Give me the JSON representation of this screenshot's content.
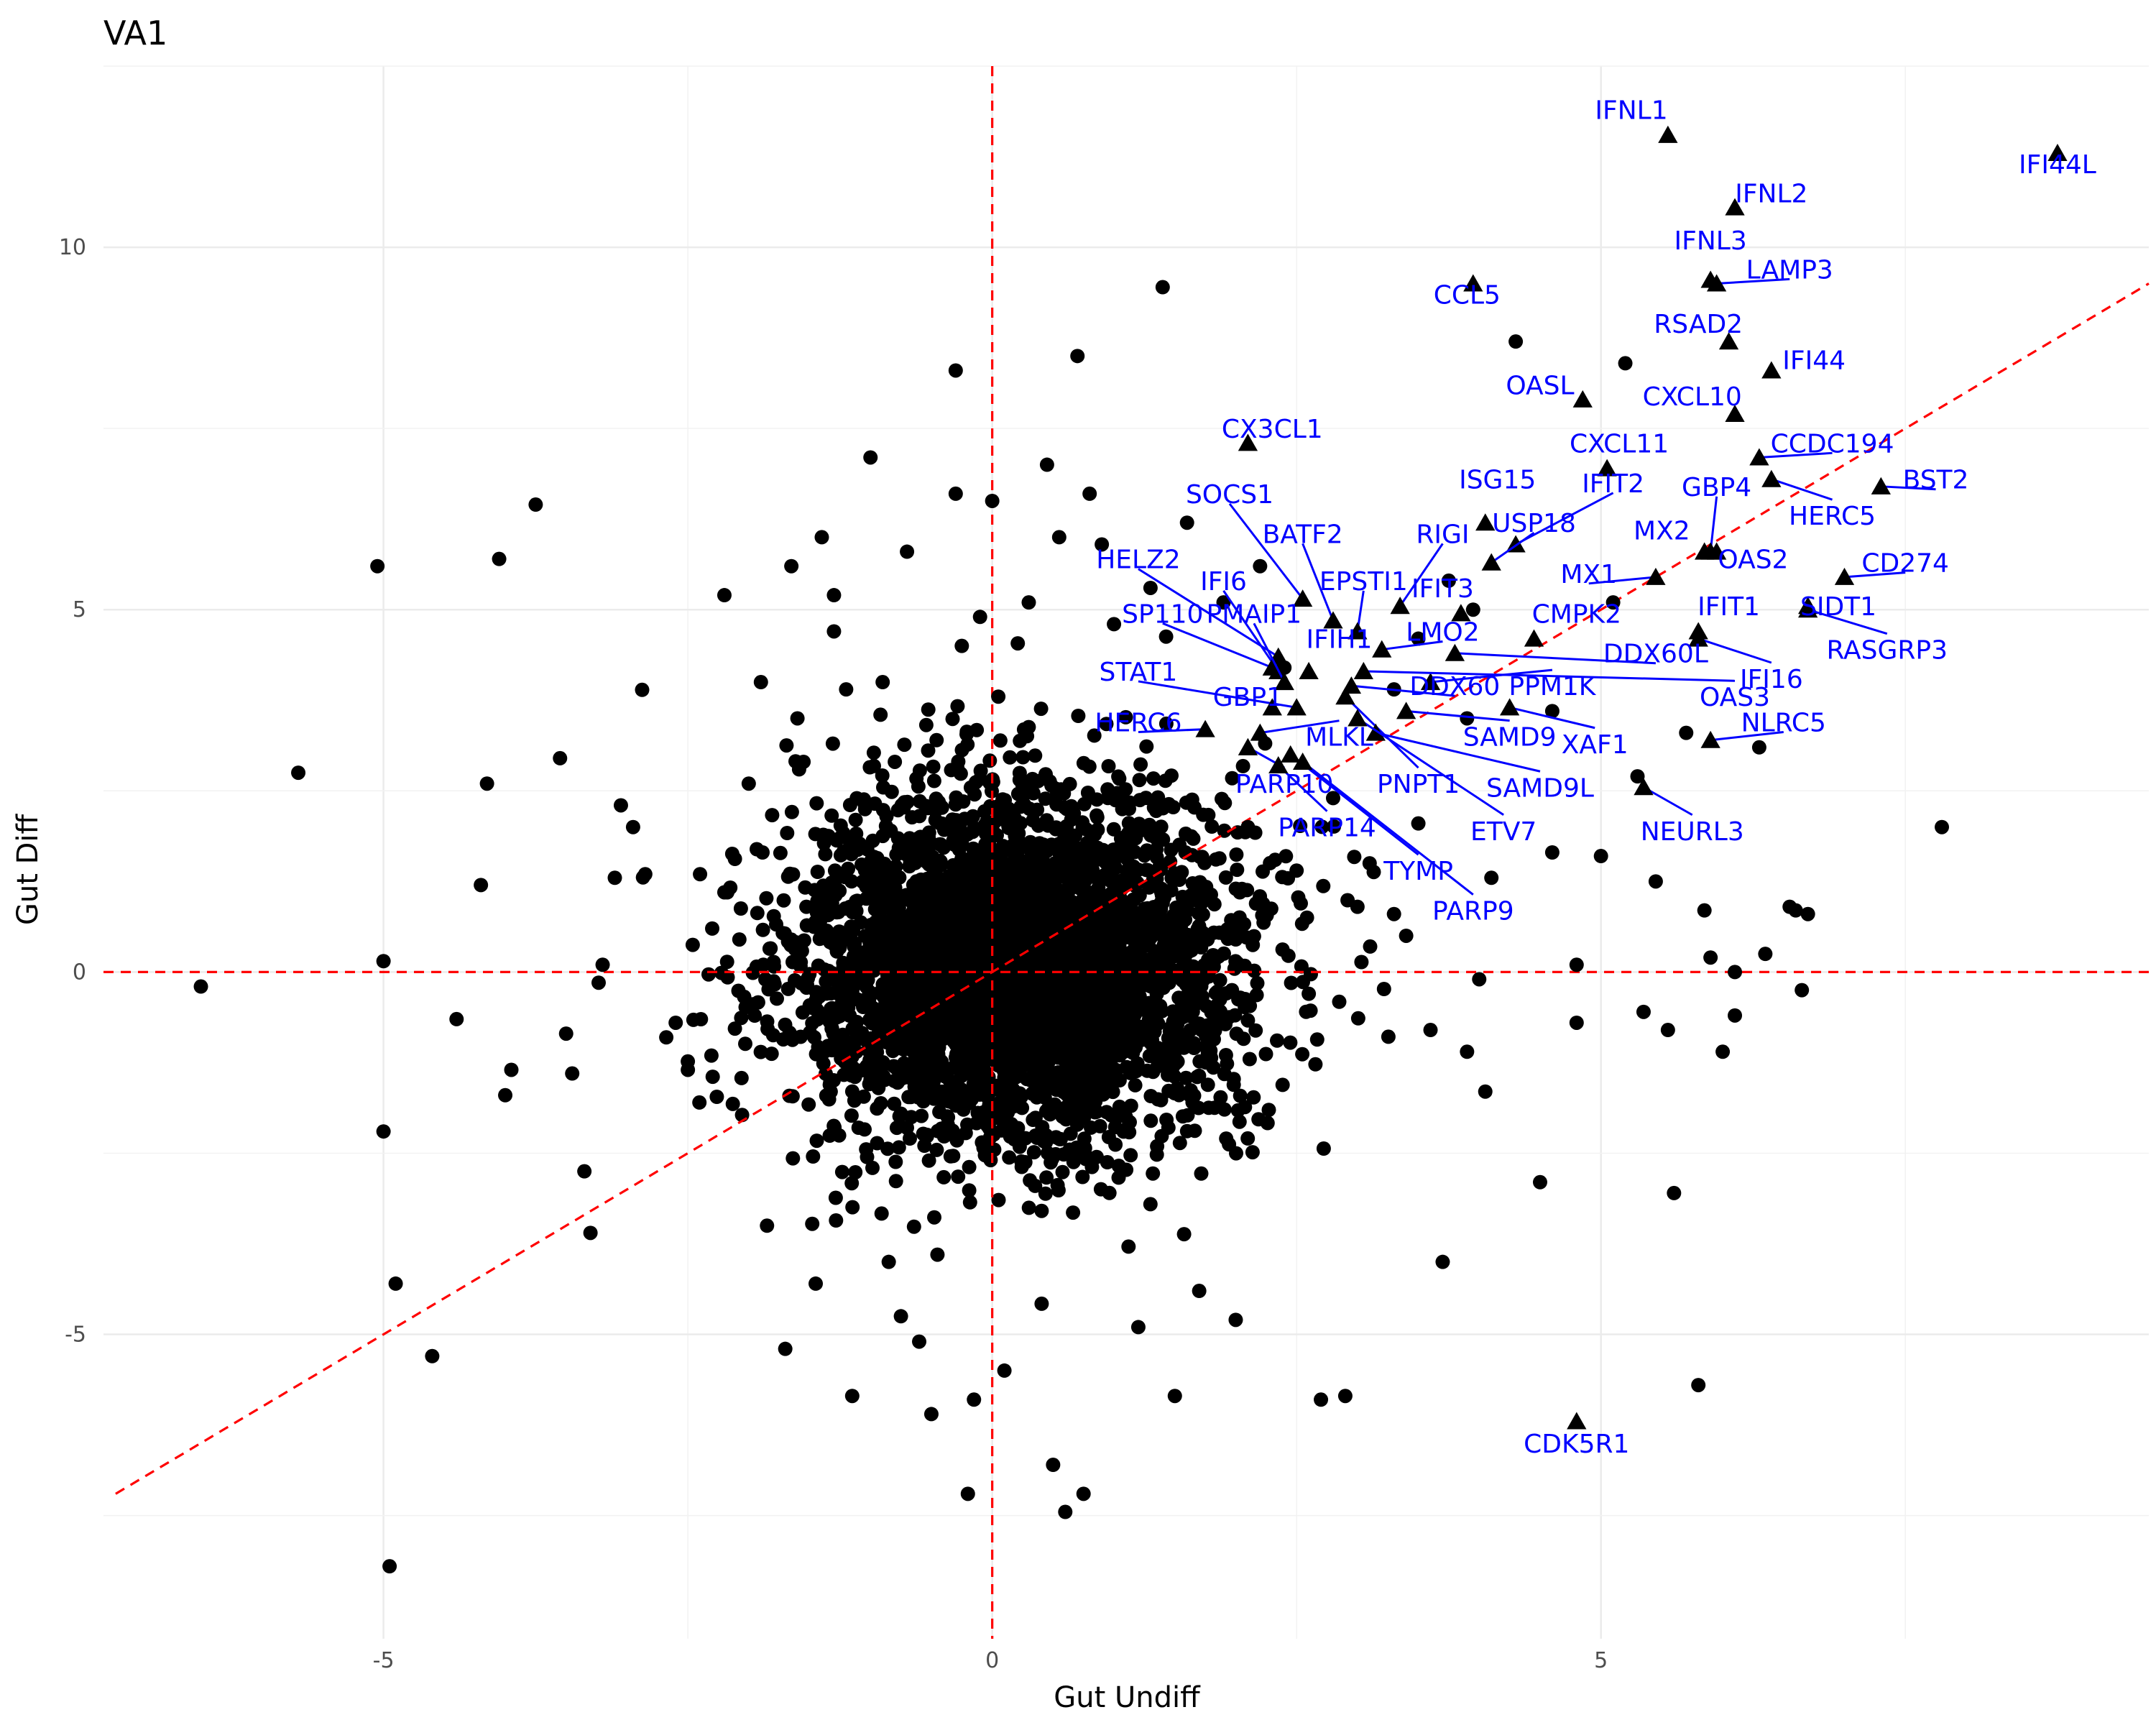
{
  "chart_data": {
    "type": "scatter",
    "title": "VA1",
    "xlabel": "Gut Undiff",
    "ylabel": "Gut Diff",
    "xlim": [
      -7.3,
      9.5
    ],
    "ylim": [
      -9.2,
      12.5
    ],
    "x_ticks": [
      -5,
      0,
      5
    ],
    "x_tick_labels": [
      "-5",
      "0",
      "5"
    ],
    "y_ticks": [
      -5,
      0,
      5,
      10
    ],
    "y_tick_labels": [
      "-5",
      "0",
      "5",
      "10"
    ],
    "grid": true,
    "reference_lines": [
      {
        "kind": "vertical",
        "x": 0,
        "color": "#ff0000",
        "style": "dashed"
      },
      {
        "kind": "horizontal",
        "y": 0,
        "color": "#ff0000",
        "style": "dashed"
      },
      {
        "kind": "diagonal",
        "slope": 1,
        "intercept": 0,
        "color": "#ff0000",
        "style": "dashed"
      }
    ],
    "marker_color": "#000000",
    "label_color": "#0000ff",
    "cloud": {
      "center": [
        0.2,
        0.0
      ],
      "sd": [
        0.9,
        1.2
      ],
      "n_points": 4000,
      "seed": 17
    },
    "highlighted": [
      {
        "gene": "IFNL1",
        "x": 5.55,
        "y": 11.55,
        "label_x": 5.25,
        "label_y": 11.9
      },
      {
        "gene": "IFI44L",
        "x": 8.75,
        "y": 11.3,
        "label_x": 8.75,
        "label_y": 11.15
      },
      {
        "gene": "IFNL2",
        "x": 6.1,
        "y": 10.55,
        "label_x": 6.4,
        "label_y": 10.75
      },
      {
        "gene": "IFNL3",
        "x": 5.9,
        "y": 9.55,
        "label_x": 5.9,
        "label_y": 10.1
      },
      {
        "gene": "LAMP3",
        "x": 5.95,
        "y": 9.5,
        "label_x": 6.55,
        "label_y": 9.7
      },
      {
        "gene": "CCL5",
        "x": 3.95,
        "y": 9.5,
        "label_x": 3.9,
        "label_y": 9.35
      },
      {
        "gene": "RSAD2",
        "x": 6.05,
        "y": 8.7,
        "label_x": 5.8,
        "label_y": 8.95
      },
      {
        "gene": "IFI44",
        "x": 6.4,
        "y": 8.3,
        "label_x": 6.75,
        "label_y": 8.45
      },
      {
        "gene": "OASL",
        "x": 4.85,
        "y": 7.9,
        "label_x": 4.5,
        "label_y": 8.1
      },
      {
        "gene": "CXCL10",
        "x": 6.1,
        "y": 7.7,
        "label_x": 5.75,
        "label_y": 7.95
      },
      {
        "gene": "CX3CL1",
        "x": 2.1,
        "y": 7.3,
        "label_x": 2.3,
        "label_y": 7.5
      },
      {
        "gene": "CXCL11",
        "x": 5.05,
        "y": 6.95,
        "label_x": 5.15,
        "label_y": 7.3
      },
      {
        "gene": "CCDC194",
        "x": 6.3,
        "y": 7.1,
        "label_x": 6.9,
        "label_y": 7.3
      },
      {
        "gene": "BST2",
        "x": 7.3,
        "y": 6.7,
        "label_x": 7.75,
        "label_y": 6.8
      },
      {
        "gene": "ISG15",
        "x": 4.05,
        "y": 6.2,
        "label_x": 4.15,
        "label_y": 6.8
      },
      {
        "gene": "IFIT2",
        "x": 4.3,
        "y": 5.9,
        "label_x": 5.1,
        "label_y": 6.75
      },
      {
        "gene": "GBP4",
        "x": 5.9,
        "y": 5.8,
        "label_x": 5.95,
        "label_y": 6.7
      },
      {
        "gene": "HERC5",
        "x": 6.4,
        "y": 6.8,
        "label_x": 6.9,
        "label_y": 6.3
      },
      {
        "gene": "SOCS1",
        "x": 2.55,
        "y": 5.15,
        "label_x": 1.95,
        "label_y": 6.6
      },
      {
        "gene": "BATF2",
        "x": 2.8,
        "y": 4.85,
        "label_x": 2.55,
        "label_y": 6.05
      },
      {
        "gene": "RIGI",
        "x": 3.35,
        "y": 5.05,
        "label_x": 3.7,
        "label_y": 6.05
      },
      {
        "gene": "USP18",
        "x": 4.1,
        "y": 5.65,
        "label_x": 4.45,
        "label_y": 6.2
      },
      {
        "gene": "MX2",
        "x": 5.85,
        "y": 5.8,
        "label_x": 5.5,
        "label_y": 6.1
      },
      {
        "gene": "OAS2",
        "x": 5.95,
        "y": 5.8,
        "label_x": 6.25,
        "label_y": 5.7
      },
      {
        "gene": "HELZ2",
        "x": 2.35,
        "y": 4.35,
        "label_x": 1.2,
        "label_y": 5.7
      },
      {
        "gene": "CD274",
        "x": 7.0,
        "y": 5.45,
        "label_x": 7.5,
        "label_y": 5.65
      },
      {
        "gene": "EPSTI1",
        "x": 3.0,
        "y": 4.7,
        "label_x": 3.05,
        "label_y": 5.4
      },
      {
        "gene": "MX1",
        "x": 5.45,
        "y": 5.45,
        "label_x": 4.9,
        "label_y": 5.5
      },
      {
        "gene": "IFI6",
        "x": 2.35,
        "y": 4.15,
        "label_x": 1.9,
        "label_y": 5.4
      },
      {
        "gene": "IFIT3",
        "x": 3.85,
        "y": 4.95,
        "label_x": 3.7,
        "label_y": 5.3
      },
      {
        "gene": "IFIT1",
        "x": 5.8,
        "y": 4.7,
        "label_x": 6.05,
        "label_y": 5.05
      },
      {
        "gene": "SIDT1",
        "x": 6.7,
        "y": 5.05,
        "label_x": 6.95,
        "label_y": 5.05
      },
      {
        "gene": "CMPK2",
        "x": 4.45,
        "y": 4.6,
        "label_x": 4.8,
        "label_y": 4.95
      },
      {
        "gene": "SP110",
        "x": 2.3,
        "y": 4.2,
        "label_x": 1.4,
        "label_y": 4.95
      },
      {
        "gene": "PMAIP1",
        "x": 2.4,
        "y": 4.0,
        "label_x": 2.15,
        "label_y": 4.95
      },
      {
        "gene": "LMO2",
        "x": 3.2,
        "y": 4.45,
        "label_x": 3.7,
        "label_y": 4.7
      },
      {
        "gene": "IFIH1",
        "x": 2.6,
        "y": 4.15,
        "label_x": 2.85,
        "label_y": 4.6
      },
      {
        "gene": "RASGRP3",
        "x": 6.7,
        "y": 5.0,
        "label_x": 7.35,
        "label_y": 4.45
      },
      {
        "gene": "DDX60L",
        "x": 3.8,
        "y": 4.4,
        "label_x": 5.45,
        "label_y": 4.4
      },
      {
        "gene": "IFI16",
        "x": 5.8,
        "y": 4.6,
        "label_x": 6.4,
        "label_y": 4.05
      },
      {
        "gene": "STAT1",
        "x": 2.5,
        "y": 3.65,
        "label_x": 1.2,
        "label_y": 4.15
      },
      {
        "gene": "DDX60",
        "x": 2.95,
        "y": 3.95,
        "label_x": 3.8,
        "label_y": 3.95
      },
      {
        "gene": "PPM1K",
        "x": 3.6,
        "y": 4.0,
        "label_x": 4.6,
        "label_y": 3.95
      },
      {
        "gene": "OAS3",
        "x": 3.05,
        "y": 4.15,
        "label_x": 6.1,
        "label_y": 3.8
      },
      {
        "gene": "GBP1",
        "x": 2.3,
        "y": 3.65,
        "label_x": 2.1,
        "label_y": 3.8
      },
      {
        "gene": "NLRC5",
        "x": 5.9,
        "y": 3.2,
        "label_x": 6.5,
        "label_y": 3.45
      },
      {
        "gene": "HERC6",
        "x": 1.75,
        "y": 3.35,
        "label_x": 1.2,
        "label_y": 3.45
      },
      {
        "gene": "SAMD9",
        "x": 3.4,
        "y": 3.6,
        "label_x": 4.25,
        "label_y": 3.25
      },
      {
        "gene": "XAF1",
        "x": 4.25,
        "y": 3.65,
        "label_x": 4.95,
        "label_y": 3.15
      },
      {
        "gene": "MLKL",
        "x": 2.2,
        "y": 3.3,
        "label_x": 2.85,
        "label_y": 3.25
      },
      {
        "gene": "PNPT1",
        "x": 2.9,
        "y": 3.8,
        "label_x": 3.5,
        "label_y": 2.6
      },
      {
        "gene": "SAMD9L",
        "x": 3.15,
        "y": 3.3,
        "label_x": 4.5,
        "label_y": 2.55
      },
      {
        "gene": "PARP10",
        "x": 2.1,
        "y": 3.1,
        "label_x": 2.4,
        "label_y": 2.6
      },
      {
        "gene": "ETV7",
        "x": 3.0,
        "y": 3.5,
        "label_x": 4.2,
        "label_y": 1.95
      },
      {
        "gene": "NEURL3",
        "x": 5.35,
        "y": 2.55,
        "label_x": 5.75,
        "label_y": 1.95
      },
      {
        "gene": "PARP14",
        "x": 2.35,
        "y": 2.85,
        "label_x": 2.75,
        "label_y": 2.0
      },
      {
        "gene": "TYMP",
        "x": 2.45,
        "y": 3.0,
        "label_x": 3.5,
        "label_y": 1.4
      },
      {
        "gene": "PARP9",
        "x": 2.55,
        "y": 2.9,
        "label_x": 3.95,
        "label_y": 0.85
      },
      {
        "gene": "CDK5R1",
        "x": 4.8,
        "y": -6.2,
        "label_x": 4.8,
        "label_y": -6.5
      }
    ],
    "other_points": [
      [
        -6.5,
        -0.2
      ],
      [
        -5.7,
        2.75
      ],
      [
        -5.05,
        5.6
      ],
      [
        -5.0,
        0.15
      ],
      [
        -5.0,
        -2.2
      ],
      [
        -4.95,
        -8.2
      ],
      [
        -4.9,
        -4.3
      ],
      [
        -4.6,
        -5.3
      ],
      [
        -4.4,
        -0.65
      ],
      [
        -4.2,
        1.2
      ],
      [
        -4.15,
        2.6
      ],
      [
        -4.05,
        5.7
      ],
      [
        -3.95,
        -1.35
      ],
      [
        -4.0,
        -1.7
      ],
      [
        -3.75,
        6.45
      ],
      [
        -3.5,
        -0.85
      ],
      [
        -3.45,
        -1.4
      ],
      [
        -3.55,
        2.95
      ],
      [
        -3.35,
        -2.75
      ],
      [
        -3.3,
        -3.6
      ],
      [
        -3.2,
        0.1
      ],
      [
        -3.1,
        1.3
      ],
      [
        -3.05,
        2.3
      ],
      [
        -2.95,
        2.0
      ],
      [
        -2.85,
        1.35
      ],
      [
        -2.6,
        -0.7
      ],
      [
        -2.4,
        1.35
      ],
      [
        -2.3,
        0.6
      ],
      [
        -2.5,
        -1.35
      ],
      [
        -2.2,
        5.2
      ],
      [
        -2.2,
        1.1
      ],
      [
        -2.0,
        2.6
      ],
      [
        -1.9,
        4.0
      ],
      [
        -1.85,
        -3.5
      ],
      [
        -1.7,
        -5.2
      ],
      [
        -1.65,
        5.6
      ],
      [
        -1.6,
        3.5
      ],
      [
        -1.55,
        2.9
      ],
      [
        -1.45,
        -4.3
      ],
      [
        -1.4,
        6.0
      ],
      [
        -1.3,
        5.2
      ],
      [
        -1.3,
        4.7
      ],
      [
        -1.2,
        3.9
      ],
      [
        -1.15,
        -5.85
      ],
      [
        -1.0,
        7.1
      ],
      [
        -0.9,
        4.0
      ],
      [
        -0.85,
        -4.0
      ],
      [
        -0.8,
        2.9
      ],
      [
        -0.75,
        -4.75
      ],
      [
        -0.7,
        5.8
      ],
      [
        -0.6,
        -5.1
      ],
      [
        -0.5,
        -6.1
      ],
      [
        -0.45,
        -3.9
      ],
      [
        -0.3,
        8.3
      ],
      [
        -0.3,
        6.6
      ],
      [
        -0.25,
        4.5
      ],
      [
        -0.2,
        -7.2
      ],
      [
        -0.15,
        -5.9
      ],
      [
        -0.1,
        4.9
      ],
      [
        0.0,
        6.5
      ],
      [
        0.05,
        3.8
      ],
      [
        0.1,
        -5.5
      ],
      [
        0.3,
        5.1
      ],
      [
        0.45,
        7.0
      ],
      [
        0.5,
        -6.8
      ],
      [
        0.55,
        6.0
      ],
      [
        0.6,
        -7.45
      ],
      [
        0.7,
        8.5
      ],
      [
        0.75,
        -7.2
      ],
      [
        0.8,
        6.6
      ],
      [
        0.9,
        5.9
      ],
      [
        1.0,
        4.8
      ],
      [
        1.2,
        -4.9
      ],
      [
        1.3,
        5.3
      ],
      [
        1.4,
        9.45
      ],
      [
        1.5,
        -5.85
      ],
      [
        1.6,
        6.2
      ],
      [
        1.7,
        -4.4
      ],
      [
        1.9,
        5.1
      ],
      [
        2.0,
        -4.8
      ],
      [
        2.1,
        2.0
      ],
      [
        2.2,
        5.6
      ],
      [
        2.4,
        4.2
      ],
      [
        2.5,
        1.4
      ],
      [
        2.6,
        -0.3
      ],
      [
        2.7,
        -5.9
      ],
      [
        2.8,
        2.4
      ],
      [
        2.9,
        -5.85
      ],
      [
        3.0,
        0.9
      ],
      [
        3.1,
        1.5
      ],
      [
        3.3,
        0.8
      ],
      [
        3.4,
        0.5
      ],
      [
        3.5,
        2.05
      ],
      [
        3.5,
        4.6
      ],
      [
        3.6,
        -0.8
      ],
      [
        3.7,
        -4.0
      ],
      [
        3.75,
        5.4
      ],
      [
        3.9,
        -1.1
      ],
      [
        3.95,
        5.0
      ],
      [
        4.0,
        -0.1
      ],
      [
        4.05,
        -1.65
      ],
      [
        4.1,
        1.3
      ],
      [
        4.3,
        8.7
      ],
      [
        4.5,
        -2.9
      ],
      [
        4.6,
        1.65
      ],
      [
        4.8,
        0.1
      ],
      [
        4.8,
        -0.7
      ],
      [
        5.0,
        1.6
      ],
      [
        5.1,
        5.1
      ],
      [
        5.2,
        8.4
      ],
      [
        5.3,
        2.7
      ],
      [
        5.35,
        -0.55
      ],
      [
        5.45,
        1.25
      ],
      [
        5.55,
        -0.8
      ],
      [
        5.6,
        -3.05
      ],
      [
        5.8,
        -5.7
      ],
      [
        5.85,
        0.85
      ],
      [
        5.9,
        0.2
      ],
      [
        6.0,
        -1.1
      ],
      [
        6.1,
        0.0
      ],
      [
        6.1,
        -0.6
      ],
      [
        6.3,
        3.1
      ],
      [
        6.35,
        0.25
      ],
      [
        6.55,
        0.9
      ],
      [
        6.6,
        0.85
      ],
      [
        6.65,
        -0.25
      ],
      [
        6.7,
        0.8
      ],
      [
        7.8,
        2.0
      ],
      [
        3.9,
        3.5
      ],
      [
        4.6,
        3.6
      ],
      [
        5.7,
        3.3
      ],
      [
        3.3,
        3.9
      ]
    ]
  }
}
